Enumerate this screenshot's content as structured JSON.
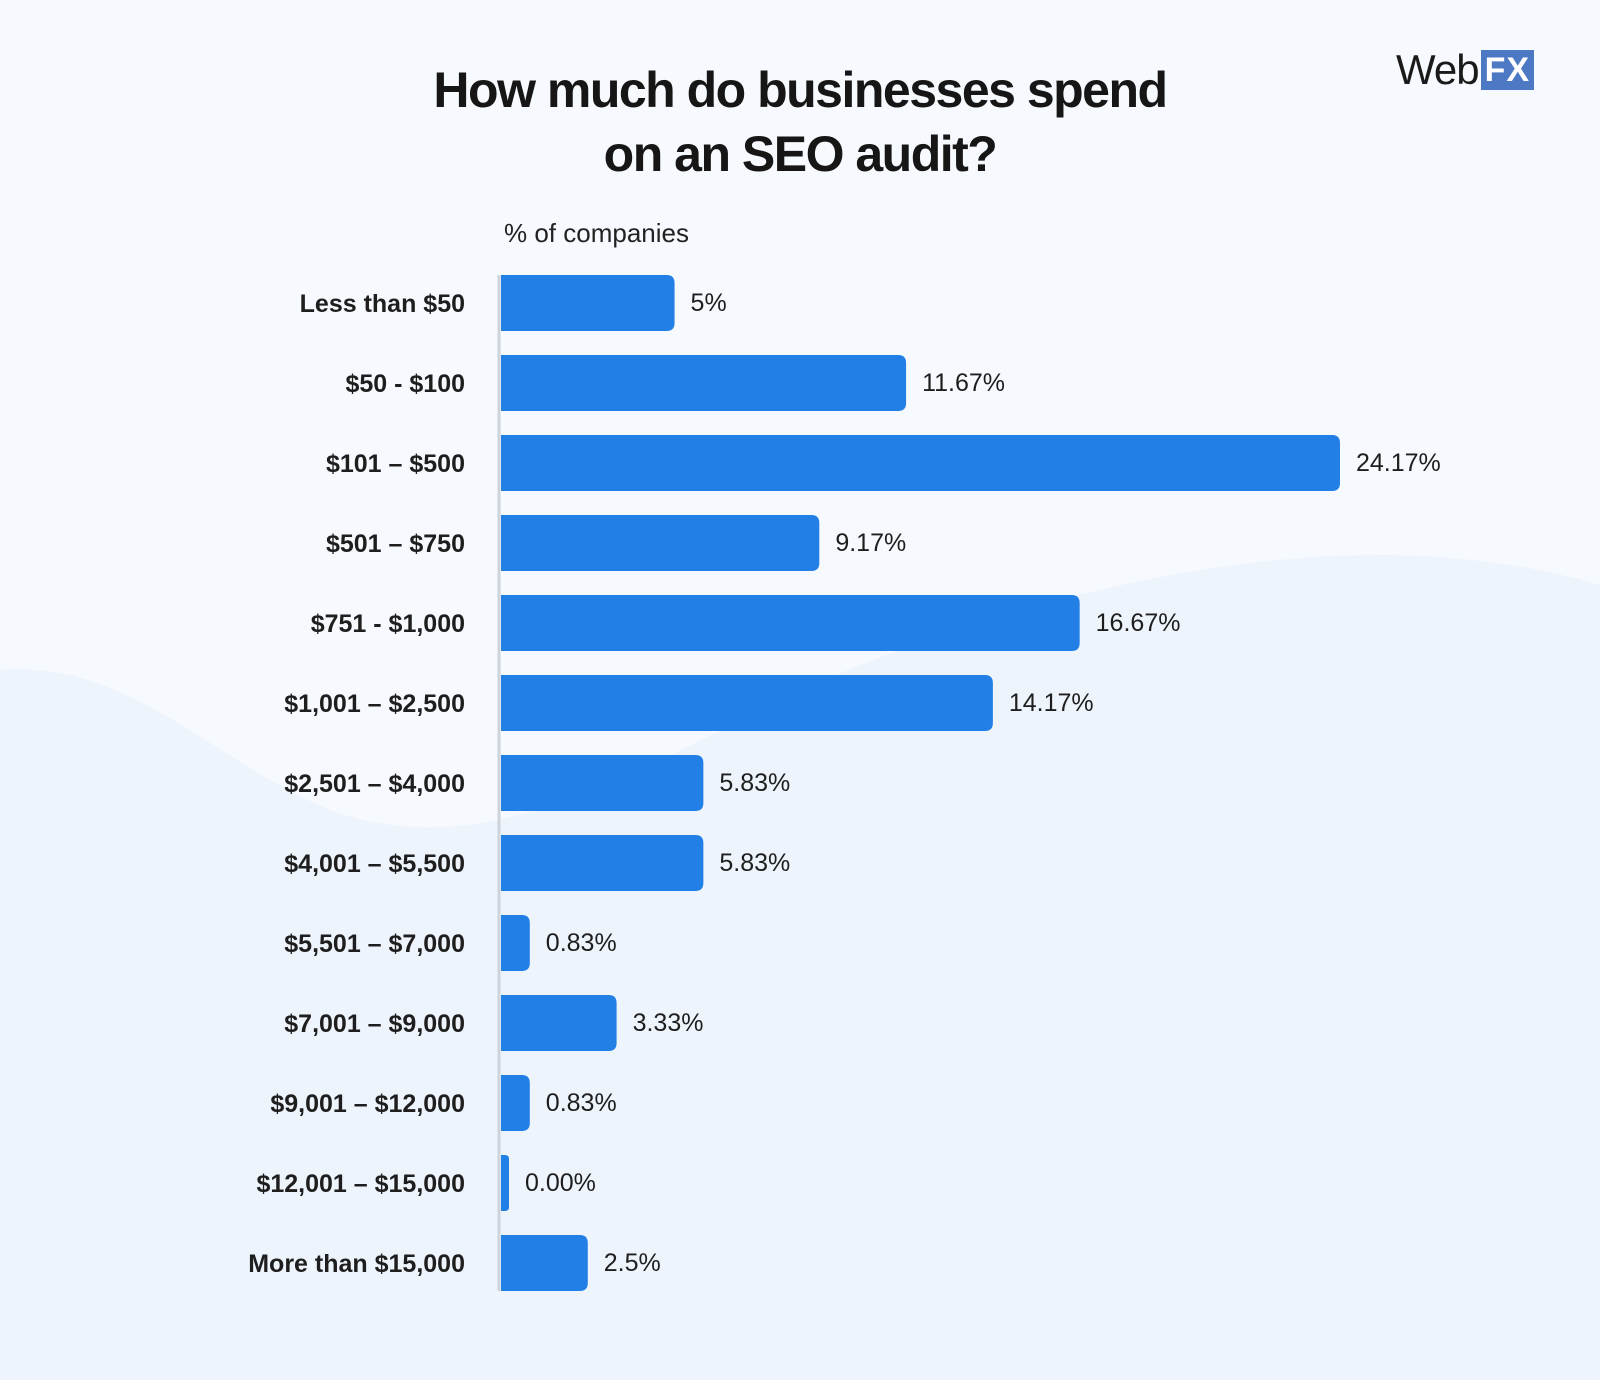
{
  "logo": {
    "word": "Web",
    "mark": "FX"
  },
  "colors": {
    "bar": "#217fe6",
    "background": "#f6f9fd",
    "axis": "#cdd3db"
  },
  "chart_data": {
    "type": "bar",
    "orientation": "horizontal",
    "title_lines": [
      "How much do businesses spend",
      "on an SEO audit?"
    ],
    "xlabel": "% of companies",
    "xlim": [
      0,
      24.17
    ],
    "grid": false,
    "legend": "none",
    "categories": [
      "Less than $50",
      "$50 - $100",
      "$101 – $500",
      "$501 – $750",
      "$751 - $1,000",
      "$1,001 – $2,500",
      "$2,501 – $4,000",
      "$4,001 – $5,500",
      "$5,501 – $7,000",
      "$7,001 – $9,000",
      "$9,001 – $12,000",
      "$12,001 – $15,000",
      "More than $15,000"
    ],
    "values": [
      5,
      11.67,
      24.17,
      9.17,
      16.67,
      14.17,
      5.83,
      5.83,
      0.83,
      3.33,
      0.83,
      0.0,
      2.5
    ],
    "value_labels": [
      "5%",
      "11.67%",
      "24.17%",
      "9.17%",
      "16.67%",
      "14.17%",
      "5.83%",
      "5.83%",
      "0.83%",
      "3.33%",
      "0.83%",
      "0.00%",
      "2.5%"
    ]
  }
}
